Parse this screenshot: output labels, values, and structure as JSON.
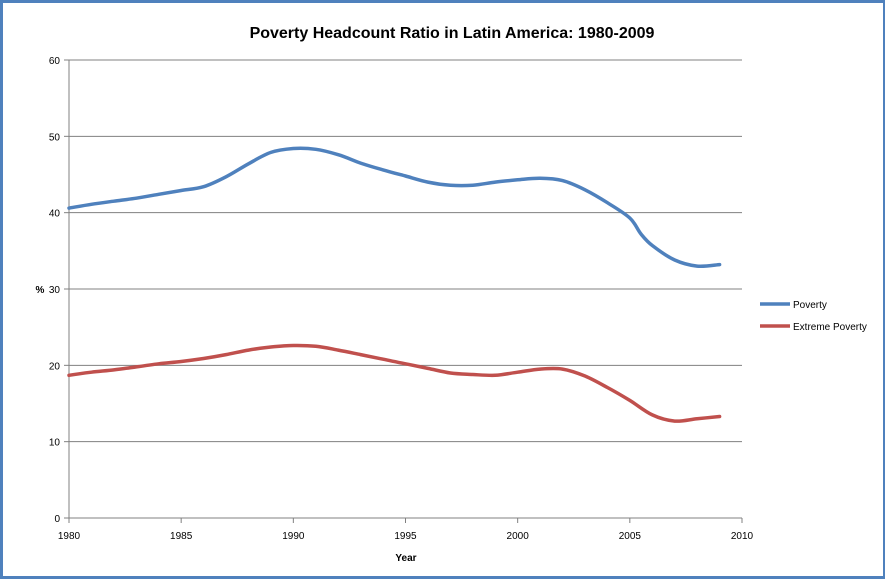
{
  "chart_data": {
    "type": "line",
    "title": "Poverty Headcount Ratio in Latin America: 1980-2009",
    "xlabel": "Year",
    "ylabel": "%",
    "xlim": [
      1980,
      2010
    ],
    "ylim": [
      0,
      60
    ],
    "x_ticks": [
      "1980",
      "1985",
      "1990",
      "1995",
      "2000",
      "2005",
      "2010"
    ],
    "y_ticks": [
      "0",
      "10",
      "20",
      "30",
      "40",
      "50",
      "60"
    ],
    "grid": "horizontal",
    "legend_position": "right",
    "series": [
      {
        "name": "Poverty",
        "color": "#4f81bd",
        "x": [
          1980,
          1981,
          1982,
          1983,
          1984,
          1985,
          1986,
          1987,
          1988,
          1989,
          1990,
          1991,
          1992,
          1993,
          1994,
          1995,
          1996,
          1997,
          1998,
          1999,
          2000,
          2001,
          2002,
          2003,
          2004,
          2005,
          2005.5,
          2006,
          2007,
          2008,
          2009
        ],
        "y": [
          40.6,
          41.1,
          41.5,
          41.9,
          42.4,
          42.9,
          43.4,
          44.7,
          46.4,
          47.9,
          48.4,
          48.3,
          47.6,
          46.5,
          45.6,
          44.8,
          44.0,
          43.6,
          43.6,
          44.0,
          44.3,
          44.5,
          44.2,
          43.0,
          41.3,
          39.3,
          37.2,
          35.7,
          33.8,
          33.0,
          33.2
        ]
      },
      {
        "name": "Extreme Poverty",
        "color": "#c0504d",
        "x": [
          1980,
          1981,
          1982,
          1983,
          1984,
          1985,
          1986,
          1987,
          1988,
          1989,
          1990,
          1991,
          1992,
          1993,
          1994,
          1995,
          1996,
          1997,
          1998,
          1999,
          2000,
          2001,
          2002,
          2003,
          2004,
          2005,
          2006,
          2007,
          2008,
          2009
        ],
        "y": [
          18.7,
          19.1,
          19.4,
          19.8,
          20.2,
          20.5,
          20.9,
          21.4,
          22.0,
          22.4,
          22.6,
          22.5,
          22.0,
          21.4,
          20.8,
          20.2,
          19.6,
          19.0,
          18.8,
          18.7,
          19.1,
          19.5,
          19.5,
          18.6,
          17.1,
          15.4,
          13.5,
          12.7,
          13.0,
          13.3
        ]
      }
    ]
  }
}
